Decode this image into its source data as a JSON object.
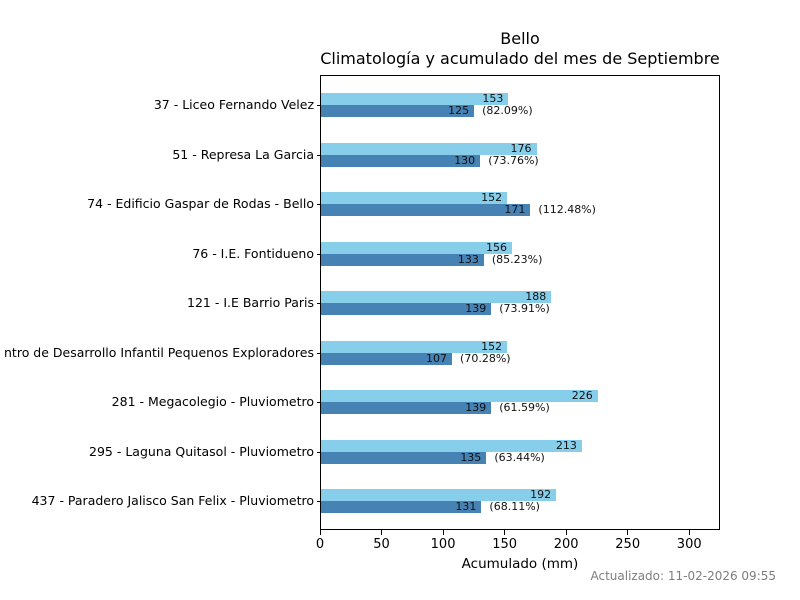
{
  "header": {
    "title": "Bello",
    "subtitle": "Climatología y acumulado del mes de Septiembre"
  },
  "footer": {
    "updated": "Actualizado: 11-02-2026 09:55"
  },
  "colors": {
    "climatology_bar": "#87CEEB",
    "accumulated_bar": "#4682B4",
    "axis": "#000000",
    "value_text": "#111111",
    "footer_text": "#7e7e7e",
    "background": "#ffffff"
  },
  "chart_data": {
    "type": "bar",
    "orientation": "horizontal",
    "title": "Bello",
    "subtitle": "Climatología y acumulado del mes de Septiembre",
    "xlabel": "Acumulado (mm)",
    "xlim": [
      0,
      325
    ],
    "xticks": [
      0,
      50,
      100,
      150,
      200,
      250,
      300
    ],
    "grid": false,
    "legend": "none",
    "categories": [
      "37 - Liceo Fernando Velez",
      "51 - Represa La Garcia",
      "74 - Edificio Gaspar de Rodas - Bello",
      "76 - I.E. Fontidueno",
      "121 - I.E Barrio Paris",
      "ntro de Desarrollo Infantil Pequenos Exploradores",
      "281 - Megacolegio - Pluviometro",
      "295 - Laguna Quitasol - Pluviometro",
      "437 - Paradero Jalisco San Felix - Pluviometro"
    ],
    "series": [
      {
        "name": "Climatología",
        "color": "#87CEEB",
        "values": [
          153,
          176,
          152,
          156,
          188,
          152,
          226,
          213,
          192
        ]
      },
      {
        "name": "Acumulado",
        "color": "#4682B4",
        "values": [
          125,
          130,
          171,
          133,
          139,
          107,
          139,
          135,
          131
        ]
      }
    ],
    "percent_labels": [
      "(82.09%)",
      "(73.76%)",
      "(112.48%)",
      "(85.23%)",
      "(73.91%)",
      "(70.28%)",
      "(61.59%)",
      "(63.44%)",
      "(68.11%)"
    ]
  }
}
